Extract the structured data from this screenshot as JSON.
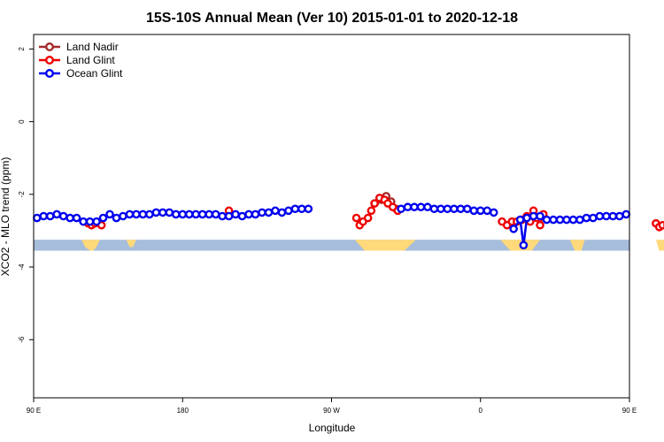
{
  "chart_data": {
    "type": "line",
    "title": "15S-10S Annual Mean (Ver 10)   2015-01-01 to 2020-12-18",
    "xlabel": "Longitude",
    "ylabel": "XCO2 - MLO trend (ppm)",
    "xlim": [
      90,
      450
    ],
    "ylim": [
      -7.6,
      2.4
    ],
    "x_ticks": [
      {
        "value": 90,
        "label": "90 E"
      },
      {
        "value": 180,
        "label": "180"
      },
      {
        "value": 270,
        "label": "90 W"
      },
      {
        "value": 360,
        "label": "0"
      },
      {
        "value": 450,
        "label": "90 E"
      },
      {
        "value": 540,
        "label": "180"
      }
    ],
    "y_ticks": [
      {
        "value": 2,
        "label": "2"
      },
      {
        "value": 0,
        "label": "0"
      },
      {
        "value": -2,
        "label": "-2"
      },
      {
        "value": -4,
        "label": "-4"
      },
      {
        "value": -6,
        "label": "-6"
      }
    ],
    "grid": false,
    "legend_position": "top-left",
    "land_band": {
      "y_top": -3.25,
      "y_bottom": -3.55,
      "color": "#a6bddb"
    },
    "land_fill_color": "#ffd97a",
    "land_masses": [
      [
        [
          119,
          -3.25
        ],
        [
          121,
          -3.45
        ],
        [
          124,
          -3.55
        ],
        [
          126,
          -3.55
        ],
        [
          128,
          -3.45
        ],
        [
          130,
          -3.25
        ]
      ],
      [
        [
          146,
          -3.25
        ],
        [
          148,
          -3.45
        ],
        [
          150,
          -3.45
        ],
        [
          152,
          -3.25
        ]
      ],
      [
        [
          284,
          -3.25
        ],
        [
          290,
          -3.55
        ],
        [
          314,
          -3.55
        ],
        [
          321,
          -3.25
        ]
      ],
      [
        [
          372,
          -3.25
        ],
        [
          378,
          -3.55
        ],
        [
          391,
          -3.55
        ],
        [
          396,
          -3.25
        ]
      ],
      [
        [
          414,
          -3.25
        ],
        [
          417,
          -3.55
        ],
        [
          421,
          -3.55
        ],
        [
          423,
          -3.25
        ]
      ],
      [
        [
          466,
          -3.25
        ],
        [
          468,
          -3.55
        ],
        [
          471,
          -3.55
        ],
        [
          473,
          -3.25
        ]
      ]
    ],
    "series": [
      {
        "name": "Land Nadir",
        "color": "#a52a2a",
        "points": [
          [
            296,
            -2.25
          ],
          [
            300,
            -2.15
          ],
          [
            303,
            -2.05
          ],
          [
            306,
            -2.2
          ],
          [
            309,
            -2.4
          ]
        ]
      },
      {
        "name": "Land Glint",
        "color": "#ee0000",
        "points": [
          [
            123,
            -2.8
          ],
          [
            125,
            -2.85
          ],
          [
            127,
            -2.8
          ],
          [
            131,
            -2.85
          ],
          [
            208,
            -2.45
          ],
          [
            285,
            -2.65
          ],
          [
            287,
            -2.85
          ],
          [
            289,
            -2.75
          ],
          [
            292,
            -2.65
          ],
          [
            294,
            -2.45
          ],
          [
            296,
            -2.25
          ],
          [
            299,
            -2.1
          ],
          [
            302,
            -2.15
          ],
          [
            304,
            -2.25
          ],
          [
            307,
            -2.35
          ],
          [
            310,
            -2.45
          ],
          [
            373,
            -2.75
          ],
          [
            376,
            -2.85
          ],
          [
            379,
            -2.75
          ],
          [
            382,
            -2.75
          ],
          [
            385,
            -2.7
          ],
          [
            388,
            -2.6
          ],
          [
            390,
            -2.75
          ],
          [
            392,
            -2.45
          ],
          [
            394,
            -2.65
          ],
          [
            396,
            -2.85
          ],
          [
            398,
            -2.55
          ],
          [
            466,
            -2.8
          ],
          [
            468,
            -2.9
          ],
          [
            470,
            -2.85
          ],
          [
            473,
            -2.85
          ]
        ]
      },
      {
        "name": "Ocean Glint",
        "color": "#0000ee",
        "points": [
          [
            92,
            -2.65
          ],
          [
            96,
            -2.6
          ],
          [
            100,
            -2.6
          ],
          [
            104,
            -2.55
          ],
          [
            108,
            -2.6
          ],
          [
            112,
            -2.65
          ],
          [
            116,
            -2.65
          ],
          [
            120,
            -2.75
          ],
          [
            124,
            -2.75
          ],
          [
            128,
            -2.75
          ],
          [
            132,
            -2.65
          ],
          [
            136,
            -2.55
          ],
          [
            140,
            -2.65
          ],
          [
            144,
            -2.6
          ],
          [
            148,
            -2.55
          ],
          [
            152,
            -2.55
          ],
          [
            156,
            -2.55
          ],
          [
            160,
            -2.55
          ],
          [
            164,
            -2.5
          ],
          [
            168,
            -2.5
          ],
          [
            172,
            -2.5
          ],
          [
            176,
            -2.55
          ],
          [
            180,
            -2.55
          ],
          [
            184,
            -2.55
          ],
          [
            188,
            -2.55
          ],
          [
            192,
            -2.55
          ],
          [
            196,
            -2.55
          ],
          [
            200,
            -2.55
          ],
          [
            204,
            -2.6
          ],
          [
            208,
            -2.6
          ],
          [
            212,
            -2.55
          ],
          [
            216,
            -2.6
          ],
          [
            220,
            -2.55
          ],
          [
            224,
            -2.55
          ],
          [
            228,
            -2.5
          ],
          [
            232,
            -2.5
          ],
          [
            236,
            -2.45
          ],
          [
            240,
            -2.5
          ],
          [
            244,
            -2.45
          ],
          [
            248,
            -2.4
          ],
          [
            252,
            -2.4
          ],
          [
            256,
            -2.4
          ],
          [
            312,
            -2.4
          ],
          [
            316,
            -2.35
          ],
          [
            320,
            -2.35
          ],
          [
            324,
            -2.35
          ],
          [
            328,
            -2.35
          ],
          [
            332,
            -2.4
          ],
          [
            336,
            -2.4
          ],
          [
            340,
            -2.4
          ],
          [
            344,
            -2.4
          ],
          [
            348,
            -2.4
          ],
          [
            352,
            -2.4
          ],
          [
            356,
            -2.45
          ],
          [
            360,
            -2.45
          ],
          [
            364,
            -2.45
          ],
          [
            368,
            -2.5
          ],
          [
            380,
            -2.95
          ],
          [
            384,
            -2.7
          ],
          [
            386,
            -3.4
          ],
          [
            388,
            -2.65
          ],
          [
            392,
            -2.6
          ],
          [
            396,
            -2.6
          ],
          [
            400,
            -2.7
          ],
          [
            404,
            -2.7
          ],
          [
            408,
            -2.7
          ],
          [
            412,
            -2.7
          ],
          [
            416,
            -2.7
          ],
          [
            420,
            -2.7
          ],
          [
            424,
            -2.65
          ],
          [
            428,
            -2.65
          ],
          [
            432,
            -2.6
          ],
          [
            436,
            -2.6
          ],
          [
            440,
            -2.6
          ],
          [
            444,
            -2.6
          ],
          [
            448,
            -2.55
          ]
        ]
      }
    ]
  }
}
